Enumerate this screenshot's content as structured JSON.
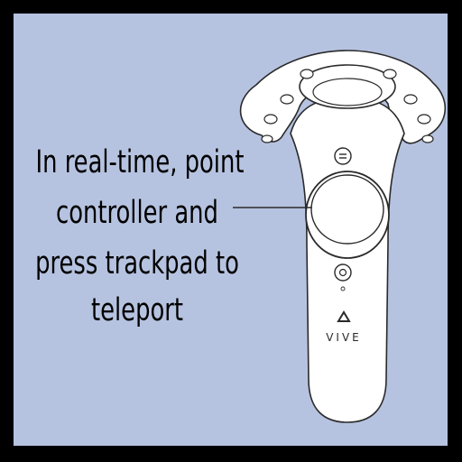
{
  "instruction_lines": [
    "In real-time, point",
    "controller and",
    "press trackpad to",
    "teleport"
  ],
  "controller": {
    "brand_label": "VIVE"
  },
  "colors": {
    "frame": "#000000",
    "background": "#b6c3e0",
    "controller_body": "#ffffff",
    "outline": "#2a2a2a"
  }
}
